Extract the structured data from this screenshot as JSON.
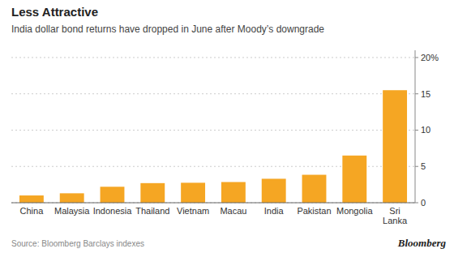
{
  "chart_data": {
    "type": "bar",
    "title": "Less Attractive",
    "subtitle": "India dollar bond returns have dropped in June after Moody’s downgrade",
    "source": "Source:  Bloomberg Barclays indexes",
    "credit": "Bloomberg",
    "categories": [
      "China",
      "Malaysia",
      "Indonesia",
      "Thailand",
      "Vietnam",
      "Macau",
      "India",
      "Pakistan",
      "Mongolia",
      "Sri\nLanka"
    ],
    "values": [
      1.0,
      1.3,
      2.2,
      2.7,
      2.75,
      2.85,
      3.3,
      3.85,
      6.5,
      15.5
    ],
    "color": "#F5A623",
    "ylim": [
      0,
      21
    ],
    "yticks": [
      0,
      5,
      10,
      15,
      {
        "value": 20,
        "label": "20%"
      }
    ],
    "grid": true
  }
}
